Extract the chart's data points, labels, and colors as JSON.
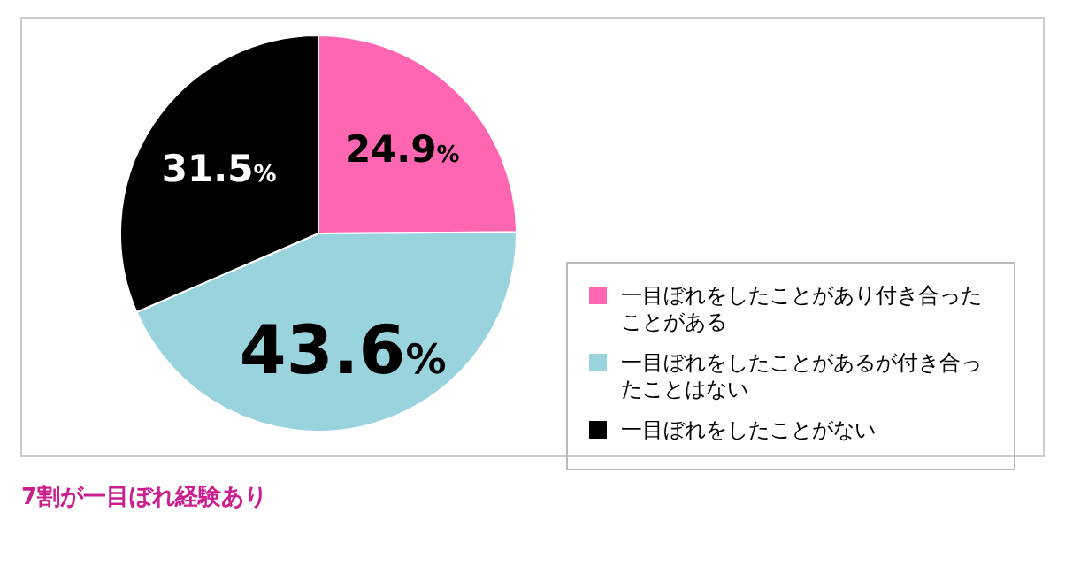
{
  "chart_data": {
    "type": "pie",
    "categories": [
      "一目ぼれをしたことがあり付き合ったことがある",
      "一目ぼれをしたことがあるが付き合ったことはない",
      "一目ぼれをしたことがない"
    ],
    "values": [
      24.9,
      43.6,
      31.5
    ],
    "colors": [
      "#ff66b2",
      "#99d3dd",
      "#000000"
    ],
    "value_labels": [
      "24.9%",
      "43.6%",
      "31.5%"
    ],
    "legend": "right",
    "annotations": [
      "7割が一目ぼれ経験あり"
    ]
  }
}
